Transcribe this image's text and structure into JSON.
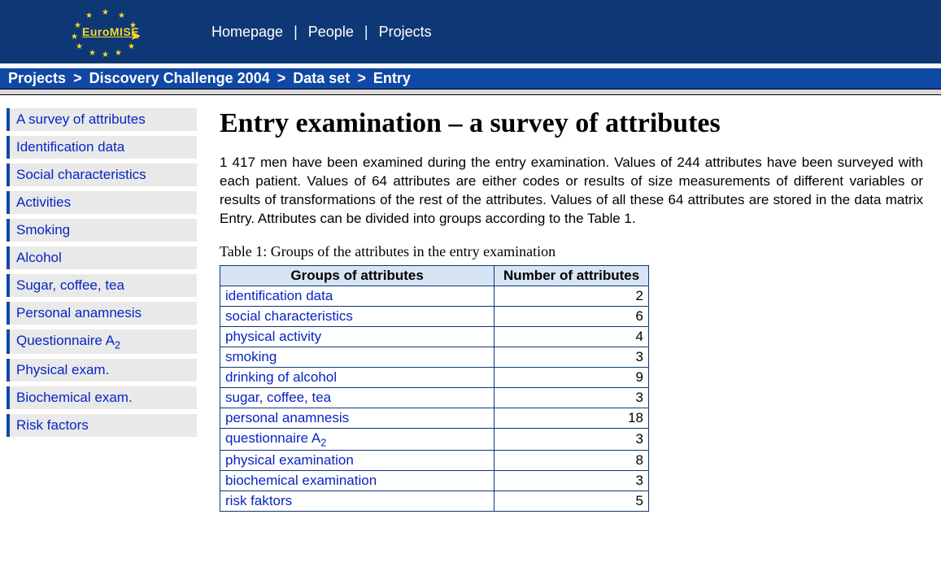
{
  "logo": {
    "brand": "EuroMISE"
  },
  "topnav": {
    "items": [
      "Homepage",
      "People",
      "Projects"
    ],
    "separator": "|"
  },
  "breadcrumb": {
    "items": [
      "Projects",
      "Discovery Challenge 2004",
      "Data set",
      "Entry"
    ],
    "separator": ">"
  },
  "sidebar": {
    "items": [
      {
        "label": "A survey of attributes"
      },
      {
        "label": "Identification data"
      },
      {
        "label": "Social characteristics"
      },
      {
        "label": "Activities"
      },
      {
        "label": "Smoking"
      },
      {
        "label": "Alcohol"
      },
      {
        "label": "Sugar, coffee, tea"
      },
      {
        "label": "Personal anamnesis"
      },
      {
        "label_html": "Questionnaire A<span class=\"sub\">2</span>"
      },
      {
        "label": "Physical exam."
      },
      {
        "label": "Biochemical exam."
      },
      {
        "label": "Risk factors"
      }
    ]
  },
  "main": {
    "heading": "Entry examination – a survey of attributes",
    "intro": "1 417 men have been examined during the entry examination. Values of 244 attributes have been surveyed with each patient. Values of 64 attributes are either codes or results of size measurements of different variables or results of transformations of the rest of the attributes. Values of all these 64 attributes are stored in the data matrix Entry. Attributes can be divided into groups according to the Table 1.",
    "table": {
      "caption": "Table 1: Groups of the attributes in the entry examination",
      "columns": [
        "Groups of attributes",
        "Number of attributes"
      ],
      "rows": [
        {
          "label": "identification data",
          "value": 2
        },
        {
          "label": "social characteristics",
          "value": 6
        },
        {
          "label": "physical activity",
          "value": 4
        },
        {
          "label": "smoking",
          "value": 3
        },
        {
          "label": "drinking of alcohol",
          "value": 9
        },
        {
          "label": "sugar, coffee, tea",
          "value": 3
        },
        {
          "label": "personal anamnesis",
          "value": 18
        },
        {
          "label_html": "questionnaire A<span class=\"sub\">2</span>",
          "value": 3
        },
        {
          "label": "physical examination",
          "value": 8
        },
        {
          "label": "biochemical examination",
          "value": 3
        },
        {
          "label": "risk faktors",
          "value": 5
        }
      ]
    }
  },
  "colors": {
    "header_bg": "#0e3775",
    "breadcrumb_bg": "#1048a5",
    "star": "#f5d92a",
    "link": "#0724c4",
    "sidebar_item_bg": "#e9e9e9",
    "table_header_bg": "#d7e4f4",
    "table_border": "#0e3775"
  }
}
